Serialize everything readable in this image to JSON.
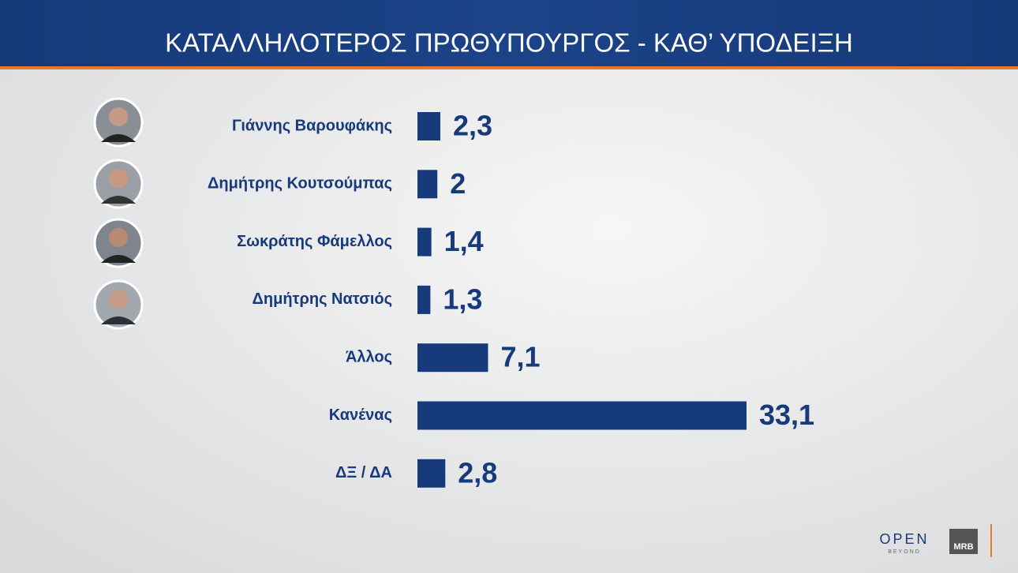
{
  "chart_data": {
    "type": "bar",
    "title": "ΚΑΤΑΛΛΗΛΟΤΕΡΟΣ  ΠΡΩΘΥΠΟΥΡΓΟΣ - ΚΑΘ’ ΥΠΟΔΕΙΞΗ",
    "categories": [
      "Γιάννης Βαρουφάκης",
      "Δημήτρης Κουτσούμπας",
      "Σωκράτης Φάμελλος",
      "Δημήτρης Νατσιός",
      "Άλλος",
      "Κανένας",
      "ΔΞ / ΔΑ"
    ],
    "values": [
      2.3,
      2,
      1.4,
      1.3,
      7.1,
      33.1,
      2.8
    ],
    "value_labels": [
      "2,3",
      "2",
      "1,4",
      "1,3",
      "7,1",
      "33,1",
      "2,8"
    ],
    "color": "#173a7c"
  },
  "branding": {
    "logo": "OPEN",
    "logo_sub": "BEYOND",
    "agency": "MRB"
  }
}
